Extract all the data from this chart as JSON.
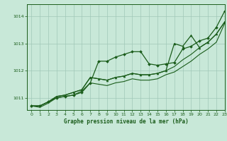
{
  "title": "Graphe pression niveau de la mer (hPa)",
  "background_color": "#c8e8d8",
  "grid_color": "#a0c8b8",
  "line_color": "#1a5c1a",
  "xlim": [
    -0.5,
    23
  ],
  "ylim": [
    1010.55,
    1014.45
  ],
  "yticks": [
    1011,
    1012,
    1013,
    1014
  ],
  "xticks": [
    0,
    1,
    2,
    3,
    4,
    5,
    6,
    7,
    8,
    9,
    10,
    11,
    12,
    13,
    14,
    15,
    16,
    17,
    18,
    19,
    20,
    21,
    22,
    23
  ],
  "series": {
    "line1_diamond": [
      1010.7,
      1010.7,
      1010.85,
      1011.0,
      1011.05,
      1011.1,
      1011.2,
      1011.55,
      1012.35,
      1012.35,
      1012.5,
      1012.6,
      1012.7,
      1012.7,
      1012.25,
      1012.2,
      1012.25,
      1012.3,
      1012.8,
      1012.9,
      1013.1,
      1013.2,
      1013.6,
      1014.2
    ],
    "line2_plain_high": [
      1010.7,
      1010.7,
      1010.85,
      1011.05,
      1011.1,
      1011.2,
      1011.3,
      1011.75,
      1011.7,
      1011.65,
      1011.75,
      1011.8,
      1011.9,
      1011.85,
      1011.85,
      1011.9,
      1012.0,
      1012.15,
      1012.4,
      1012.6,
      1012.85,
      1013.05,
      1013.35,
      1013.8
    ],
    "line3_triangle": [
      1010.7,
      1010.7,
      1010.85,
      1011.05,
      1011.1,
      1011.2,
      1011.3,
      1011.75,
      1011.7,
      1011.65,
      1011.75,
      1011.8,
      1011.9,
      1011.85,
      1011.85,
      1011.9,
      1012.0,
      1013.0,
      1012.9,
      1013.3,
      1012.85,
      1013.05,
      1013.35,
      1013.8
    ],
    "line4_plain_low": [
      1010.7,
      1010.65,
      1010.8,
      1011.0,
      1011.05,
      1011.1,
      1011.25,
      1011.55,
      1011.5,
      1011.45,
      1011.55,
      1011.6,
      1011.7,
      1011.65,
      1011.65,
      1011.7,
      1011.85,
      1011.95,
      1012.15,
      1012.35,
      1012.6,
      1012.8,
      1013.05,
      1013.75
    ]
  }
}
